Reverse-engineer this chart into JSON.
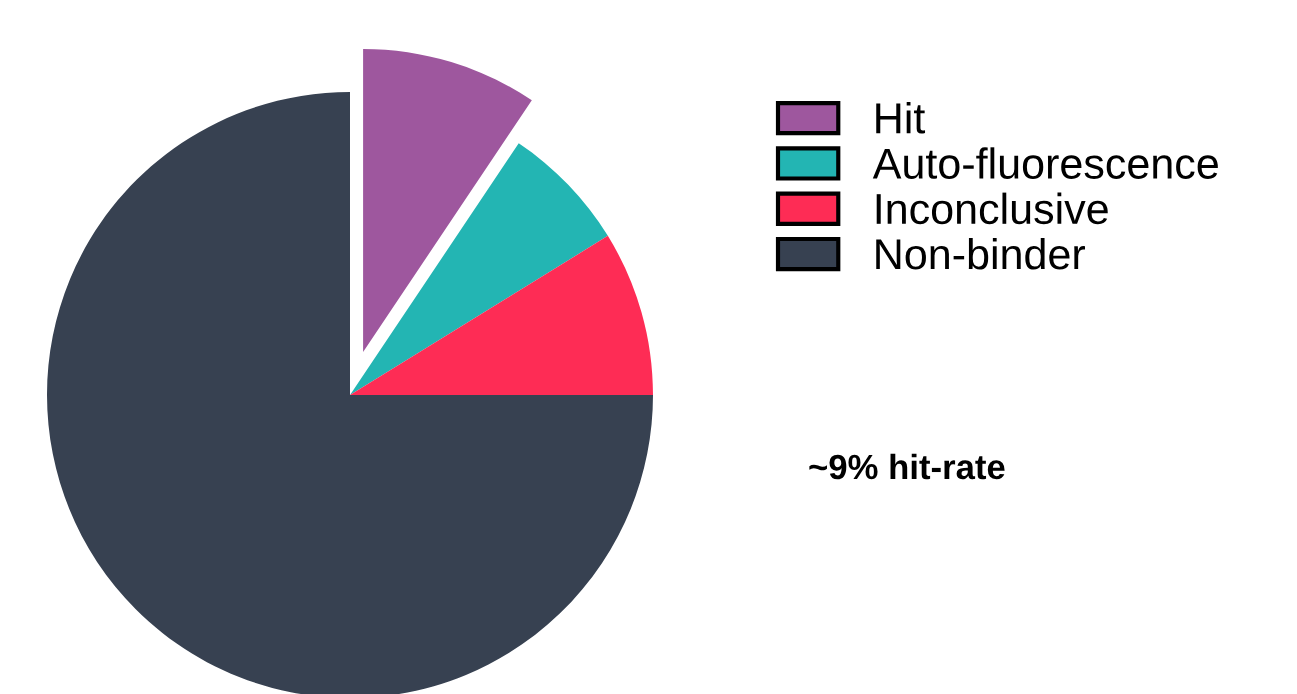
{
  "chart_data": {
    "type": "pie",
    "categories": [
      "Hit",
      "Auto-fluorescence",
      "Inconclusive",
      "Non-binder"
    ],
    "values": [
      9.4,
      6.8,
      8.8,
      75.0
    ],
    "colors": [
      "#9e579e",
      "#23b5b3",
      "#fe2c55",
      "#374151"
    ],
    "legend": "top right",
    "annotations": [
      "~9% hit-rate"
    ]
  }
}
